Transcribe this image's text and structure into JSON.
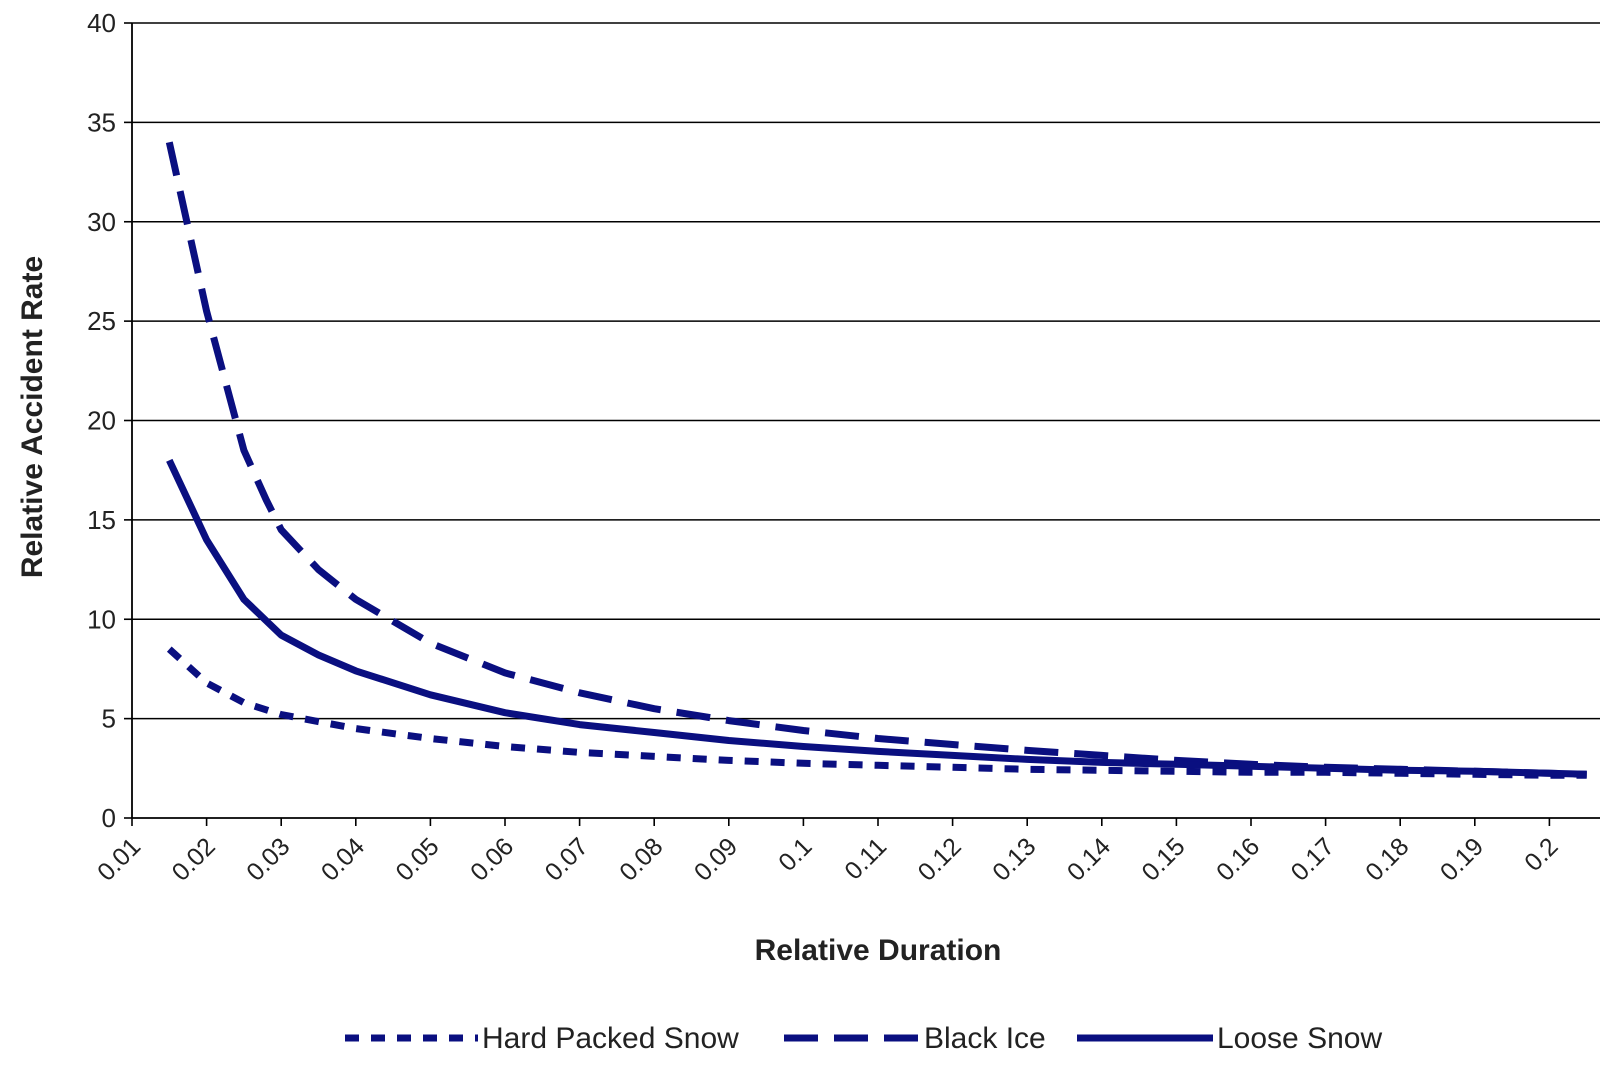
{
  "chart_data": {
    "type": "line",
    "title": "",
    "xlabel": "Relative Duration",
    "ylabel": "Relative Accident Rate",
    "ylim": [
      0,
      40
    ],
    "yticks": [
      0,
      5,
      10,
      15,
      20,
      25,
      30,
      35,
      40
    ],
    "xlim": [
      0.01,
      0.205
    ],
    "xticks": [
      "0.01",
      "0.02",
      "0.03",
      "0.04",
      "0.05",
      "0.06",
      "0.07",
      "0.08",
      "0.09",
      "0.1",
      "0.11",
      "0.12",
      "0.13",
      "0.14",
      "0.15",
      "0.16",
      "0.17",
      "0.18",
      "0.19",
      "0.2"
    ],
    "grid": "horizontal",
    "legend": "bottom",
    "colors": {
      "series": "#0a0f80",
      "grid": "#000000",
      "axis": "#000000"
    },
    "series": [
      {
        "name": "Hard Packed Snow",
        "style": "short-dash",
        "x": [
          0.015,
          0.02,
          0.025,
          0.03,
          0.04,
          0.05,
          0.06,
          0.07,
          0.08,
          0.09,
          0.1,
          0.11,
          0.12,
          0.13,
          0.14,
          0.15,
          0.16,
          0.17,
          0.18,
          0.19,
          0.2,
          0.205
        ],
        "y": [
          8.5,
          6.8,
          5.8,
          5.2,
          4.5,
          4.0,
          3.6,
          3.3,
          3.1,
          2.9,
          2.75,
          2.65,
          2.55,
          2.45,
          2.4,
          2.35,
          2.3,
          2.3,
          2.25,
          2.2,
          2.15,
          2.15
        ]
      },
      {
        "name": "Black Ice",
        "style": "long-dash",
        "x": [
          0.015,
          0.02,
          0.025,
          0.028,
          0.03,
          0.035,
          0.04,
          0.05,
          0.06,
          0.07,
          0.08,
          0.09,
          0.1,
          0.11,
          0.12,
          0.13,
          0.14,
          0.15,
          0.16,
          0.17,
          0.18,
          0.19,
          0.2,
          0.205
        ],
        "y": [
          34,
          25.5,
          18.5,
          16,
          14.5,
          12.5,
          11,
          8.8,
          7.3,
          6.3,
          5.5,
          4.9,
          4.4,
          4.0,
          3.7,
          3.4,
          3.15,
          2.9,
          2.7,
          2.55,
          2.45,
          2.35,
          2.25,
          2.2
        ]
      },
      {
        "name": "Loose Snow",
        "style": "solid",
        "x": [
          0.015,
          0.02,
          0.025,
          0.03,
          0.035,
          0.04,
          0.05,
          0.06,
          0.07,
          0.08,
          0.09,
          0.1,
          0.11,
          0.12,
          0.13,
          0.14,
          0.15,
          0.16,
          0.17,
          0.18,
          0.19,
          0.2,
          0.205
        ],
        "y": [
          18,
          14,
          11,
          9.2,
          8.2,
          7.4,
          6.2,
          5.3,
          4.7,
          4.3,
          3.9,
          3.6,
          3.35,
          3.15,
          2.95,
          2.8,
          2.7,
          2.6,
          2.5,
          2.4,
          2.35,
          2.25,
          2.2
        ]
      }
    ]
  }
}
